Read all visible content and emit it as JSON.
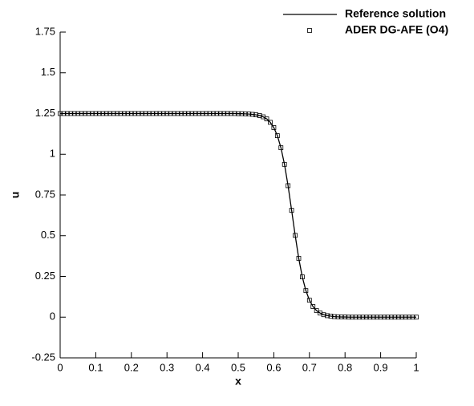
{
  "chart_data": {
    "type": "line",
    "xlabel": "x",
    "ylabel": "u",
    "x": [
      0,
      0.01,
      0.02,
      0.03,
      0.04,
      0.05,
      0.06,
      0.07,
      0.08,
      0.09,
      0.1,
      0.11,
      0.12,
      0.13,
      0.14,
      0.15,
      0.16,
      0.17,
      0.18,
      0.19,
      0.2,
      0.21,
      0.22,
      0.23,
      0.24,
      0.25,
      0.26,
      0.27,
      0.28,
      0.29,
      0.3,
      0.31,
      0.32,
      0.33,
      0.34,
      0.35,
      0.36,
      0.37,
      0.38,
      0.39,
      0.4,
      0.41,
      0.42,
      0.43,
      0.44,
      0.45,
      0.46,
      0.47,
      0.48,
      0.49,
      0.5,
      0.51,
      0.52,
      0.53,
      0.54,
      0.55,
      0.56,
      0.57,
      0.58,
      0.59,
      0.6,
      0.61,
      0.62,
      0.63,
      0.64,
      0.65,
      0.66,
      0.67,
      0.68,
      0.69,
      0.7,
      0.71,
      0.72,
      0.73,
      0.74,
      0.75,
      0.76,
      0.77,
      0.78,
      0.79,
      0.8,
      0.81,
      0.82,
      0.83,
      0.84,
      0.85,
      0.86,
      0.87,
      0.88,
      0.89,
      0.9,
      0.91,
      0.92,
      0.93,
      0.94,
      0.95,
      0.96,
      0.97,
      0.98,
      0.99,
      1
    ],
    "series": [
      {
        "name": "Reference solution",
        "color": "#000000",
        "style": "line",
        "values": [
          1.25,
          1.25,
          1.25,
          1.25,
          1.25,
          1.25,
          1.25,
          1.25,
          1.25,
          1.25,
          1.25,
          1.25,
          1.25,
          1.25,
          1.25,
          1.25,
          1.25,
          1.25,
          1.25,
          1.25,
          1.25,
          1.25,
          1.25,
          1.25,
          1.25,
          1.25,
          1.25,
          1.25,
          1.25,
          1.25,
          1.25,
          1.25,
          1.25,
          1.25,
          1.25,
          1.25,
          1.25,
          1.25,
          1.25,
          1.25,
          1.25,
          1.25,
          1.25,
          1.25,
          1.25,
          1.25,
          1.25,
          1.25,
          1.25,
          1.25,
          1.249,
          1.249,
          1.248,
          1.247,
          1.245,
          1.242,
          1.238,
          1.23,
          1.217,
          1.196,
          1.164,
          1.114,
          1.04,
          0.938,
          0.807,
          0.656,
          0.502,
          0.361,
          0.247,
          0.163,
          0.104,
          0.065,
          0.04,
          0.025,
          0.015,
          0.009,
          0.006,
          0.003,
          0.002,
          0.001,
          0.001,
          0,
          0,
          0,
          0,
          0,
          0,
          0,
          0,
          0,
          0,
          0,
          0,
          0,
          0,
          0,
          0,
          0,
          0,
          0,
          0
        ]
      },
      {
        "name": "ADER DG-AFE (O4)",
        "color": "#000000",
        "style": "square",
        "values": [
          1.25,
          1.25,
          1.25,
          1.25,
          1.25,
          1.25,
          1.25,
          1.25,
          1.25,
          1.25,
          1.25,
          1.25,
          1.25,
          1.25,
          1.25,
          1.25,
          1.25,
          1.25,
          1.25,
          1.25,
          1.25,
          1.25,
          1.25,
          1.25,
          1.25,
          1.25,
          1.25,
          1.25,
          1.25,
          1.25,
          1.25,
          1.25,
          1.25,
          1.25,
          1.25,
          1.25,
          1.25,
          1.25,
          1.25,
          1.25,
          1.25,
          1.25,
          1.25,
          1.25,
          1.25,
          1.25,
          1.25,
          1.25,
          1.25,
          1.25,
          1.249,
          1.249,
          1.248,
          1.247,
          1.245,
          1.242,
          1.238,
          1.23,
          1.217,
          1.196,
          1.164,
          1.114,
          1.04,
          0.938,
          0.807,
          0.656,
          0.502,
          0.361,
          0.247,
          0.163,
          0.104,
          0.065,
          0.04,
          0.025,
          0.015,
          0.009,
          0.006,
          0.003,
          0.002,
          0.001,
          0.001,
          0,
          0,
          0,
          0,
          0,
          0,
          0,
          0,
          0,
          0,
          0,
          0,
          0,
          0,
          0,
          0,
          0,
          0,
          0,
          0
        ]
      }
    ],
    "xlim": [
      0,
      1
    ],
    "xticks": [
      0,
      0.1,
      0.2,
      0.3,
      0.4,
      0.5,
      0.6,
      0.7,
      0.8,
      0.9,
      1
    ],
    "ylim": [
      -0.25,
      1.75
    ],
    "yticks": [
      -0.25,
      0,
      0.25,
      0.5,
      0.75,
      1,
      1.25,
      1.5,
      1.75
    ],
    "legend": "top-right"
  }
}
